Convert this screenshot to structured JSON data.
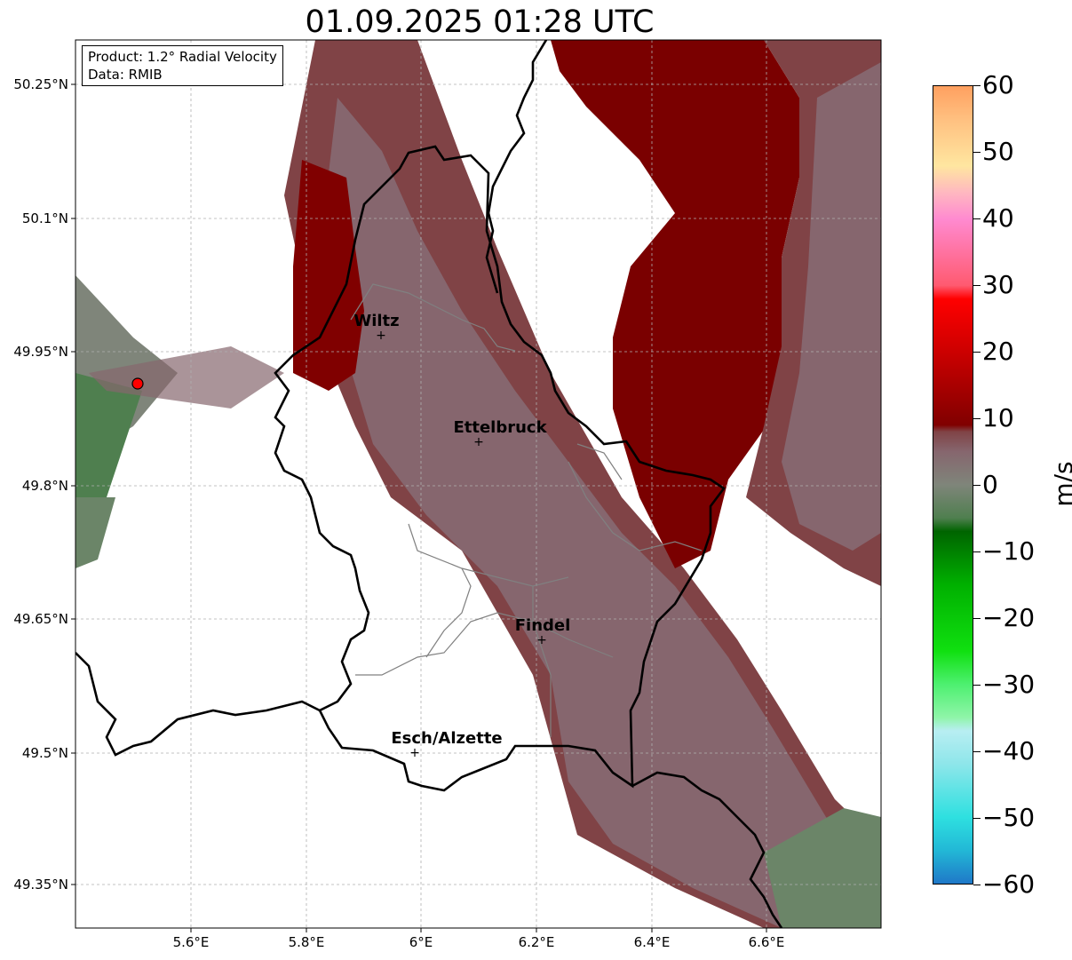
{
  "title": "01.09.2025 01:28 UTC",
  "info": {
    "product": "Product: 1.2° Radial Velocity",
    "data_source": "Data: RMIB"
  },
  "axes": {
    "lat_labels": [
      "50.25°N",
      "50.1°N",
      "49.95°N",
      "49.8°N",
      "49.65°N",
      "49.5°N",
      "49.35°N"
    ],
    "lon_labels": [
      "5.6°E",
      "5.8°E",
      "6°E",
      "6.2°E",
      "6.4°E",
      "6.6°E"
    ]
  },
  "cities": [
    {
      "name": "Wiltz",
      "lon": 5.93,
      "lat": 49.97
    },
    {
      "name": "Ettelbruck",
      "lon": 6.1,
      "lat": 49.85
    },
    {
      "name": "Findel",
      "lon": 6.21,
      "lat": 49.63
    },
    {
      "name": "Esch/Alzette",
      "lon": 5.99,
      "lat": 49.5
    }
  ],
  "radar_site": {
    "lon": 5.51,
    "lat": 49.914,
    "color": "#ff0000"
  },
  "colorbar": {
    "unit": "m/s",
    "labels": [
      "60",
      "50",
      "40",
      "30",
      "20",
      "10",
      "0",
      "−10",
      "−20",
      "−30",
      "−40",
      "−50",
      "−60"
    ],
    "min": -60,
    "max": 60,
    "stops": [
      {
        "v": -60,
        "color": "#1f78c8"
      },
      {
        "v": -55,
        "color": "#22b8d6"
      },
      {
        "v": -50,
        "color": "#2ee0e0"
      },
      {
        "v": -42,
        "color": "#8ee6ea"
      },
      {
        "v": -37,
        "color": "#b8eef2"
      },
      {
        "v": -35,
        "color": "#8ff5a8"
      },
      {
        "v": -30,
        "color": "#4df070"
      },
      {
        "v": -25,
        "color": "#10e010"
      },
      {
        "v": -15,
        "color": "#00b000"
      },
      {
        "v": -7,
        "color": "#006400"
      },
      {
        "v": -5,
        "color": "#4f7f4f"
      },
      {
        "v": 0,
        "color": "#7f857a"
      },
      {
        "v": 5,
        "color": "#86666e"
      },
      {
        "v": 8,
        "color": "#804346"
      },
      {
        "v": 9,
        "color": "#800000"
      },
      {
        "v": 20,
        "color": "#cc0000"
      },
      {
        "v": 28,
        "color": "#ff0000"
      },
      {
        "v": 30,
        "color": "#ff5a70"
      },
      {
        "v": 40,
        "color": "#ff8ad0"
      },
      {
        "v": 44,
        "color": "#ffb8c0"
      },
      {
        "v": 48,
        "color": "#ffe6a0"
      },
      {
        "v": 55,
        "color": "#ffc080"
      },
      {
        "v": 60,
        "color": "#ffa060"
      }
    ]
  },
  "palette": {
    "velocity_inbound_dark": "#6b8568",
    "velocity_zero": "#86666e",
    "velocity_outbound_low": "#804346",
    "velocity_outbound_mid": "#800000",
    "velocity_outbound_high": "#cc0000",
    "border_color": "#000000",
    "canton_color": "#808080",
    "grid_color": "#b0b0b0"
  }
}
